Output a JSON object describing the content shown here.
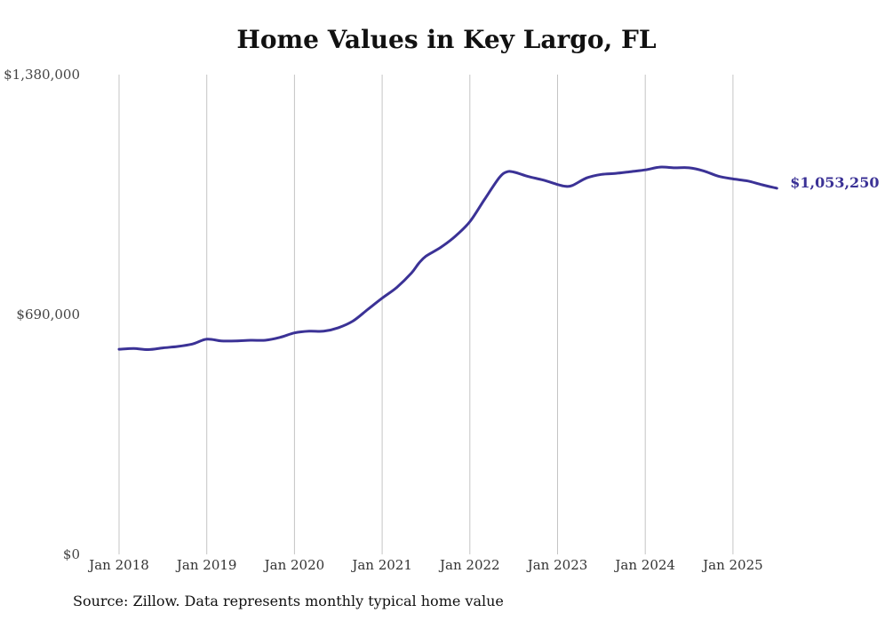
{
  "chart_data": {
    "type": "line",
    "title": "Home Values in Key Largo, FL",
    "xlabel": "",
    "ylabel": "",
    "ylim": [
      0,
      1380000
    ],
    "y_ticks": [
      "$0",
      "$690,000",
      "$1,380,000"
    ],
    "y_tick_values": [
      0,
      690000,
      1380000
    ],
    "x_ticks": [
      "Jan 2018",
      "Jan 2019",
      "Jan 2020",
      "Jan 2021",
      "Jan 2022",
      "Jan 2023",
      "Jan 2024",
      "Jan 2025"
    ],
    "x_tick_values": [
      "2018-01",
      "2019-01",
      "2020-01",
      "2021-01",
      "2022-01",
      "2023-01",
      "2024-01",
      "2025-01"
    ],
    "x_range": [
      "2018-01",
      "2025-07"
    ],
    "grid": "vertical",
    "line_color": "#3b3296",
    "end_label": "$1,053,250",
    "series": [
      {
        "name": "",
        "x": [
          "2018-01",
          "2018-03",
          "2018-05",
          "2018-07",
          "2018-09",
          "2018-11",
          "2019-01",
          "2019-03",
          "2019-05",
          "2019-07",
          "2019-09",
          "2019-11",
          "2020-01",
          "2020-03",
          "2020-05",
          "2020-07",
          "2020-09",
          "2020-11",
          "2021-01",
          "2021-03",
          "2021-05",
          "2021-06",
          "2021-07",
          "2021-09",
          "2021-11",
          "2022-01",
          "2022-03",
          "2022-05",
          "2022-06",
          "2022-07",
          "2022-09",
          "2022-11",
          "2023-01",
          "2023-02",
          "2023-03",
          "2023-05",
          "2023-07",
          "2023-09",
          "2023-11",
          "2024-01",
          "2024-03",
          "2024-05",
          "2024-07",
          "2024-09",
          "2024-11",
          "2025-01",
          "2025-03",
          "2025-05",
          "2025-07"
        ],
        "values": [
          590000,
          592000,
          589000,
          594000,
          598000,
          605000,
          619000,
          614000,
          614000,
          616000,
          616000,
          624000,
          637000,
          642000,
          642000,
          652000,
          671000,
          704000,
          737000,
          768000,
          809000,
          837000,
          858000,
          883000,
          915000,
          957000,
          1021000,
          1083000,
          1100000,
          1100000,
          1087000,
          1077000,
          1064000,
          1059000,
          1061000,
          1083000,
          1093000,
          1096000,
          1101000,
          1106000,
          1114000,
          1112000,
          1112000,
          1103000,
          1088000,
          1080000,
          1074000,
          1063000,
          1053250
        ]
      }
    ]
  },
  "footer": {
    "source": "Source: Zillow. Data represents monthly typical home value"
  }
}
